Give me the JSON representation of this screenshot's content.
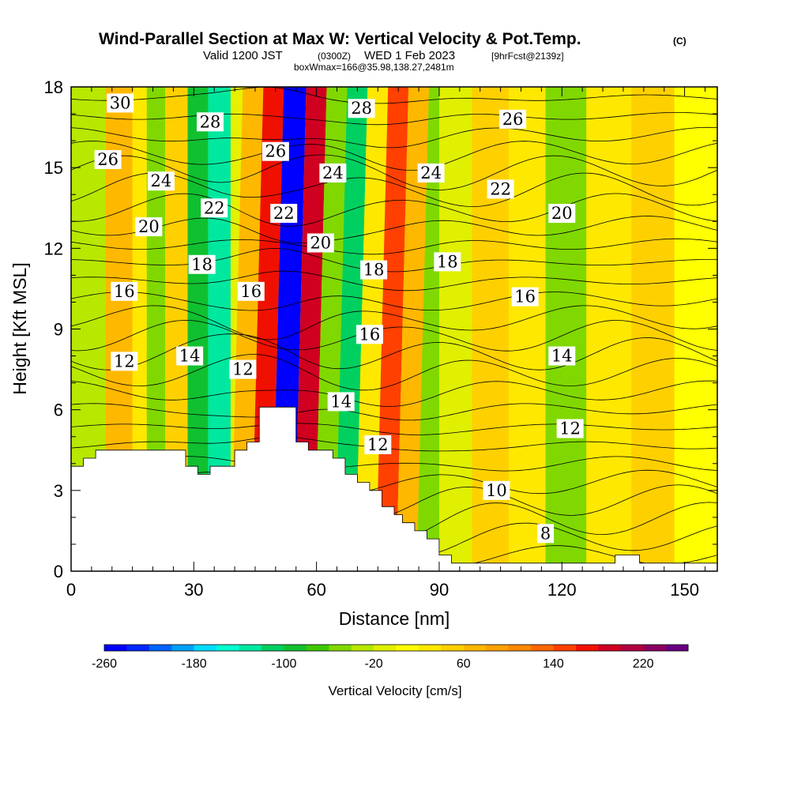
{
  "header": {
    "title_main": "Wind-Parallel Section at Max W: Vertical Velocity & Pot.Temp.",
    "title_mark": "(C)",
    "valid_a": "Valid 1200 JST",
    "valid_b": "(0300Z)",
    "valid_c": "WED 1 Feb 2023",
    "valid_d": "[9hrFcst@2139z]",
    "box_info": "boxWmax=166@35.98,138.27,2481m"
  },
  "chart_data": {
    "type": "heatmap",
    "xlabel": "Distance [nm]",
    "ylabel": "Height [Kft MSL]",
    "xlim": [
      0,
      158
    ],
    "ylim": [
      0,
      18
    ],
    "x_ticks": [
      0,
      30,
      60,
      90,
      120,
      150
    ],
    "y_ticks": [
      0,
      3,
      6,
      9,
      12,
      15,
      18
    ],
    "colorbar": {
      "label": "Vertical Velocity [cm/s]",
      "range": [
        -260,
        260
      ],
      "step": 20,
      "tick_labels": [
        "-260",
        "-180",
        "-100",
        "-20",
        "60",
        "140",
        "220"
      ],
      "tick_values": [
        -260,
        -180,
        -100,
        -20,
        60,
        140,
        220
      ],
      "colors": [
        "#0000ff",
        "#0028ff",
        "#0064ff",
        "#00a0ff",
        "#00dcff",
        "#00ffd0",
        "#00e8a0",
        "#00d060",
        "#10c030",
        "#40c800",
        "#80d800",
        "#b8e800",
        "#e0f000",
        "#ffff00",
        "#ffe800",
        "#ffd000",
        "#ffb800",
        "#ffa000",
        "#ff8800",
        "#ff6800",
        "#ff4000",
        "#f01000",
        "#d00020",
        "#b00040",
        "#8c0060",
        "#6a0080"
      ]
    },
    "vertical_velocity_bands": [
      {
        "x": 4,
        "w": -40
      },
      {
        "x": 13,
        "w": 60
      },
      {
        "x": 17,
        "w": 20
      },
      {
        "x": 20,
        "w": -60
      },
      {
        "x": 26,
        "w": 40
      },
      {
        "x": 31,
        "w": -100
      },
      {
        "x": 36,
        "w": -130
      },
      {
        "x": 42,
        "w": 60
      },
      {
        "x": 46,
        "w": 160
      },
      {
        "x": 52,
        "w": -250
      },
      {
        "x": 57,
        "w": 190
      },
      {
        "x": 62,
        "w": -60
      },
      {
        "x": 67,
        "w": -110
      },
      {
        "x": 72,
        "w": 20
      },
      {
        "x": 77,
        "w": 150
      },
      {
        "x": 82,
        "w": 60
      },
      {
        "x": 87,
        "w": -50
      },
      {
        "x": 93,
        "w": -20
      },
      {
        "x": 103,
        "w": 40
      },
      {
        "x": 111,
        "w": 20
      },
      {
        "x": 121,
        "w": -60
      },
      {
        "x": 131,
        "w": 20
      },
      {
        "x": 143,
        "w": 50
      },
      {
        "x": 152,
        "w": 0
      }
    ],
    "terrain_height_kft": [
      [
        0,
        3.9
      ],
      [
        3,
        3.9
      ],
      [
        3,
        4.2
      ],
      [
        6,
        4.2
      ],
      [
        6,
        4.5
      ],
      [
        28,
        4.5
      ],
      [
        28,
        3.9
      ],
      [
        31,
        3.9
      ],
      [
        31,
        3.6
      ],
      [
        34,
        3.6
      ],
      [
        34,
        3.9
      ],
      [
        40,
        3.9
      ],
      [
        40,
        4.5
      ],
      [
        43,
        4.5
      ],
      [
        43,
        4.8
      ],
      [
        46,
        4.8
      ],
      [
        46,
        6.1
      ],
      [
        52,
        6.1
      ],
      [
        52,
        6.1
      ],
      [
        55,
        6.1
      ],
      [
        55,
        4.8
      ],
      [
        58,
        4.8
      ],
      [
        58,
        4.5
      ],
      [
        64,
        4.5
      ],
      [
        64,
        4.2
      ],
      [
        67,
        4.2
      ],
      [
        67,
        3.6
      ],
      [
        70,
        3.6
      ],
      [
        70,
        3.3
      ],
      [
        73,
        3.3
      ],
      [
        73,
        3.0
      ],
      [
        76,
        3.0
      ],
      [
        76,
        2.4
      ],
      [
        79,
        2.4
      ],
      [
        79,
        2.1
      ],
      [
        81,
        2.1
      ],
      [
        81,
        1.8
      ],
      [
        84,
        1.8
      ],
      [
        84,
        1.5
      ],
      [
        87,
        1.5
      ],
      [
        87,
        1.2
      ],
      [
        90,
        1.2
      ],
      [
        90,
        0.6
      ],
      [
        93,
        0.6
      ],
      [
        93,
        0.3
      ],
      [
        133,
        0.3
      ],
      [
        133,
        0.6
      ],
      [
        139,
        0.6
      ],
      [
        139,
        0.3
      ],
      [
        158,
        0.3
      ]
    ],
    "theta_contour_levels_C": [
      6,
      7,
      8,
      9,
      10,
      11,
      12,
      13,
      14,
      15,
      16,
      17,
      18,
      19,
      20,
      21,
      22,
      23,
      24,
      25,
      26,
      27,
      28,
      29,
      30,
      31
    ],
    "contour_labels": [
      {
        "text": "30",
        "x": 12,
        "y": 17.4
      },
      {
        "text": "28",
        "x": 34,
        "y": 16.7
      },
      {
        "text": "28",
        "x": 71,
        "y": 17.2
      },
      {
        "text": "26",
        "x": 9,
        "y": 15.3
      },
      {
        "text": "26",
        "x": 50,
        "y": 15.6
      },
      {
        "text": "26",
        "x": 108,
        "y": 16.8
      },
      {
        "text": "24",
        "x": 22,
        "y": 14.5
      },
      {
        "text": "24",
        "x": 64,
        "y": 14.8
      },
      {
        "text": "24",
        "x": 88,
        "y": 14.8
      },
      {
        "text": "22",
        "x": 35,
        "y": 13.5
      },
      {
        "text": "22",
        "x": 52,
        "y": 13.3
      },
      {
        "text": "22",
        "x": 105,
        "y": 14.2
      },
      {
        "text": "20",
        "x": 19,
        "y": 12.8
      },
      {
        "text": "20",
        "x": 61,
        "y": 12.2
      },
      {
        "text": "20",
        "x": 120,
        "y": 13.3
      },
      {
        "text": "18",
        "x": 32,
        "y": 11.4
      },
      {
        "text": "18",
        "x": 74,
        "y": 11.2
      },
      {
        "text": "18",
        "x": 92,
        "y": 11.5
      },
      {
        "text": "16",
        "x": 13,
        "y": 10.4
      },
      {
        "text": "16",
        "x": 44,
        "y": 10.4
      },
      {
        "text": "16",
        "x": 73,
        "y": 8.8
      },
      {
        "text": "16",
        "x": 111,
        "y": 10.2
      },
      {
        "text": "14",
        "x": 29,
        "y": 8.0
      },
      {
        "text": "14",
        "x": 66,
        "y": 6.3
      },
      {
        "text": "14",
        "x": 120,
        "y": 8.0
      },
      {
        "text": "12",
        "x": 13,
        "y": 7.8
      },
      {
        "text": "12",
        "x": 42,
        "y": 7.5
      },
      {
        "text": "12",
        "x": 75,
        "y": 4.7
      },
      {
        "text": "12",
        "x": 122,
        "y": 5.3
      },
      {
        "text": "10",
        "x": 104,
        "y": 3.0
      },
      {
        "text": "8",
        "x": 116,
        "y": 1.4
      }
    ]
  }
}
